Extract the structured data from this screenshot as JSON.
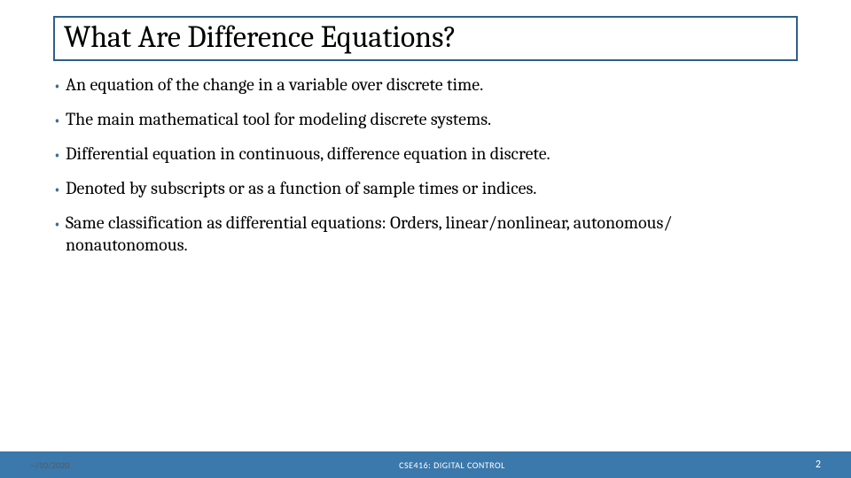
{
  "colors": {
    "title_border": "#2e5f8a",
    "footer_bg": "#3b78ab",
    "bullet_color": "#3b6e98",
    "text_color": "#000000"
  },
  "title": "What Are Difference Equations?",
  "bullets": [
    "An equation of the change in a variable over discrete time.",
    "The main mathematical tool for modeling discrete systems.",
    "Differential equation in continuous, difference equation in discrete.",
    "Denoted by subscripts or as a function of sample times or indices.",
    "Same classification as differential equations: Orders, linear/nonlinear, autonomous/ nonautonomous."
  ],
  "footer": {
    "date": "--/10/2020",
    "course": "CSE416: DIGITAL CONTROL",
    "page": "2"
  }
}
